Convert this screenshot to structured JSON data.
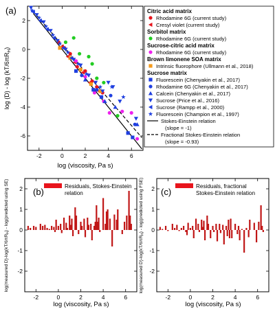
{
  "chart_data": [
    {
      "panel": "(a)",
      "type": "scatter",
      "xlabel": "log (viscosity, Pa s)",
      "ylabel": "log (D) - log (kT/6πR",
      "ylabel_sub": "H",
      "ylabel_end": ")",
      "xlim": [
        -3,
        7
      ],
      "ylim": [
        -7,
        3
      ],
      "xticks": [
        -2,
        0,
        2,
        4,
        6
      ],
      "yticks": [
        -6,
        -4,
        -2,
        0,
        2
      ],
      "grid": false,
      "legend_groups": [
        {
          "title": "Citric acid matrix",
          "entries": [
            {
              "label": "Rhodamine 6G (current study)",
              "color": "#e8141c",
              "marker": "circle"
            },
            {
              "label": "Cresyl violet (current study)",
              "color": "#e8141c",
              "marker": "triangle-left"
            }
          ]
        },
        {
          "title": "Sorbitol matrix",
          "entries": [
            {
              "label": "Rhodamine 6G (current study)",
              "color": "#22cc22",
              "marker": "circle"
            }
          ]
        },
        {
          "title": "Sucrose-citric acid matrix",
          "entries": [
            {
              "label": "Rhodamine 6G (current study)",
              "color": "#ee22ee",
              "marker": "circle"
            }
          ]
        },
        {
          "title": "Brown limonene SOA matrix",
          "entries": [
            {
              "label": "Intrinsic fluorophore (Ullmann et al., 2018)",
              "color": "#f59a1b",
              "marker": "square"
            }
          ]
        },
        {
          "title": "Sucrose matrix",
          "entries": [
            {
              "label": "Fluorescein (Chenyakin et al., 2017)",
              "color": "#1f3fe0",
              "marker": "square"
            },
            {
              "label": "Rhodamine 6G (Chenyakin et al., 2017)",
              "color": "#1f3fe0",
              "marker": "circle"
            },
            {
              "label": "Calcein (Chenyakin et al., 2017)",
              "color": "#1f3fe0",
              "marker": "triangle-up"
            },
            {
              "label": "Sucrose (Price et al., 2016)",
              "color": "#1f3fe0",
              "marker": "triangle-down"
            },
            {
              "label": "Sucrose (Rampp et al., 2000)",
              "color": "#1f3fe0",
              "marker": "triangle-left"
            },
            {
              "label": "Fluorescein (Champion et al., 1997)",
              "color": "#1f3fe0",
              "marker": "star"
            }
          ]
        }
      ],
      "lines": [
        {
          "label": "Stokes-Einstein relation",
          "note": "(slope = -1)",
          "style": "solid",
          "slope": -1,
          "intercept": 0,
          "x_range": [
            -2.5,
            6.9
          ]
        },
        {
          "label": "Fractional Stokes-Einstein relation",
          "note": "(slope = -0.93)",
          "style": "dashed",
          "slope": -0.93,
          "intercept": 0.3,
          "x_range": [
            -2.5,
            6.9
          ]
        }
      ],
      "series": [
        {
          "name": "Citric acid matrix – Rhodamine 6G (current study)",
          "color": "#e8141c",
          "marker": "circle",
          "points": [
            [
              -0.3,
              0.5
            ],
            [
              0.2,
              0.1
            ],
            [
              0.7,
              -0.3
            ],
            [
              1.3,
              -1.2
            ],
            [
              2.0,
              -1.5
            ],
            [
              2.6,
              -2.2
            ],
            [
              3.0,
              -2.6
            ],
            [
              3.5,
              -3.0
            ]
          ]
        },
        {
          "name": "Citric acid matrix – Cresyl violet (current study)",
          "color": "#e8141c",
          "marker": "triangle-left",
          "points": [
            [
              0.0,
              0.2
            ],
            [
              0.5,
              -0.5
            ],
            [
              1.1,
              -0.9
            ],
            [
              1.8,
              -1.6
            ],
            [
              2.4,
              -2.3
            ],
            [
              3.2,
              -2.9
            ]
          ]
        },
        {
          "name": "Sorbitol matrix – Rhodamine 6G (current study)",
          "color": "#22cc22",
          "marker": "circle",
          "points": [
            [
              0.3,
              0.5
            ],
            [
              1.0,
              0.8
            ],
            [
              1.5,
              -0.3
            ],
            [
              2.3,
              -0.5
            ],
            [
              2.6,
              -1.0
            ],
            [
              3.0,
              -2.0
            ],
            [
              3.6,
              -2.3
            ],
            [
              4.8,
              -4.6
            ]
          ]
        },
        {
          "name": "Sucrose-citric acid matrix – Rhodamine 6G (current study)",
          "color": "#ee22ee",
          "marker": "circle",
          "points": [
            [
              1.2,
              -0.8
            ],
            [
              2.0,
              -1.9
            ],
            [
              2.8,
              -3.0
            ],
            [
              3.6,
              -3.6
            ],
            [
              4.1,
              -4.4
            ],
            [
              5.2,
              -4.3
            ],
            [
              6.0,
              -4.4
            ],
            [
              6.5,
              -6.2
            ]
          ]
        },
        {
          "name": "Brown limonene SOA matrix – Intrinsic fluorophore (Ullmann et al., 2018)",
          "color": "#f59a1b",
          "marker": "square",
          "points": [
            [
              -0.2,
              0.1
            ],
            [
              0.7,
              -0.6
            ],
            [
              1.6,
              -1.4
            ],
            [
              2.5,
              -2.4
            ],
            [
              3.3,
              -2.9
            ]
          ]
        },
        {
          "name": "Sucrose matrix – Fluorescein (Chenyakin et al., 2017)",
          "color": "#1f3fe0",
          "marker": "square",
          "points": [
            [
              1.2,
              -1.5
            ],
            [
              2.7,
              -2.8
            ],
            [
              3.4,
              -3.3
            ],
            [
              5.7,
              -5.8
            ],
            [
              6.1,
              -6.1
            ]
          ]
        },
        {
          "name": "Sucrose matrix – Rhodamine 6G (Chenyakin et al., 2017)",
          "color": "#1f3fe0",
          "marker": "circle",
          "points": [
            [
              1.7,
              -1.8
            ],
            [
              3.0,
              -2.8
            ],
            [
              4.2,
              -3.2
            ],
            [
              6.3,
              -5.2
            ]
          ]
        },
        {
          "name": "Sucrose matrix – Calcein (Chenyakin et al., 2017)",
          "color": "#1f3fe0",
          "marker": "triangle-up",
          "points": [
            [
              2.0,
              -2.1
            ],
            [
              3.7,
              -3.6
            ],
            [
              4.6,
              -4.0
            ],
            [
              6.5,
              -5.2
            ]
          ]
        },
        {
          "name": "Sucrose matrix – Sucrose (Price et al., 2016)",
          "color": "#1f3fe0",
          "marker": "triangle-down",
          "points": [
            [
              -2.7,
              2.9
            ],
            [
              -2.2,
              2.4
            ],
            [
              -1.6,
              1.9
            ],
            [
              -1.0,
              1.3
            ],
            [
              -0.4,
              0.6
            ],
            [
              0.3,
              0.0
            ],
            [
              1.0,
              -0.7
            ],
            [
              1.6,
              -1.1
            ],
            [
              2.3,
              -1.8
            ],
            [
              2.9,
              -2.3
            ],
            [
              3.5,
              -2.9
            ],
            [
              4.0,
              -2.3
            ],
            [
              4.4,
              -2.6
            ],
            [
              5.0,
              -3.6
            ],
            [
              6.4,
              -4.8
            ]
          ]
        },
        {
          "name": "Sucrose matrix – Sucrose (Rampp et al., 2000)",
          "color": "#1f3fe0",
          "marker": "triangle-left",
          "points": [
            [
              -2.5,
              2.6
            ],
            [
              -1.9,
              2.0
            ],
            [
              -1.3,
              1.4
            ],
            [
              -0.7,
              0.8
            ],
            [
              0.1,
              0.1
            ],
            [
              0.8,
              -0.6
            ]
          ]
        },
        {
          "name": "Sucrose matrix – Fluorescein (Champion et al., 1997)",
          "color": "#1f3fe0",
          "marker": "star",
          "points": [
            [
              -2.6,
              2.7
            ],
            [
              -2.0,
              2.2
            ],
            [
              -1.4,
              1.6
            ],
            [
              -0.8,
              1.0
            ],
            [
              -0.2,
              0.4
            ],
            [
              0.5,
              -0.2
            ],
            [
              1.4,
              -1.0
            ],
            [
              2.1,
              -1.7
            ],
            [
              3.3,
              -2.6
            ],
            [
              4.3,
              -2.6
            ],
            [
              5.3,
              -3.3
            ]
          ]
        }
      ]
    },
    {
      "panel": "(b)",
      "type": "bar",
      "legend": "Residuals, Stokes-Einstein relation",
      "legend_lines": [
        "Residuals, Stokes-Einstein",
        "relation"
      ],
      "color": "#c01616",
      "xlabel": "log (viscosity, Pa s)",
      "ylabel_lines": [
        "log(measured D)-log(kT/6πR",
        "H",
        ") - log(predicted using SE)"
      ],
      "xlim": [
        -3,
        7
      ],
      "ylim": [
        -3,
        2.5
      ],
      "xticks": [
        -2,
        0,
        2,
        4,
        6
      ],
      "yticks": [
        -2,
        -1,
        0,
        1,
        2
      ],
      "x": [
        -2.7,
        -2.5,
        -2.2,
        -2.0,
        -1.6,
        -1.4,
        -1.2,
        -1.0,
        -0.8,
        -0.6,
        -0.4,
        -0.3,
        -0.2,
        0.0,
        0.2,
        0.3,
        0.5,
        0.7,
        0.8,
        1.0,
        1.1,
        1.2,
        1.3,
        1.5,
        1.6,
        1.8,
        2.0,
        2.1,
        2.3,
        2.4,
        2.6,
        2.7,
        2.9,
        3.0,
        3.2,
        3.3,
        3.4,
        3.5,
        3.6,
        3.7,
        4.0,
        4.2,
        4.3,
        4.4,
        4.6,
        4.8,
        5.0,
        5.2,
        5.3,
        5.7,
        5.9,
        6.1,
        6.3,
        6.4,
        6.5
      ],
      "values": [
        0.2,
        0.1,
        0.2,
        0.15,
        0.3,
        0.2,
        0.25,
        0.1,
        0.05,
        0.2,
        0.15,
        -0.1,
        0.5,
        0.2,
        0.3,
        -0.15,
        0.6,
        0.35,
        0.1,
        0.7,
        0.25,
        0.55,
        -0.3,
        1.1,
        0.7,
        -0.2,
        0.4,
        0.2,
        0.55,
        -0.35,
        0.6,
        0.25,
        0.3,
        -0.5,
        0.2,
        0.4,
        1.2,
        0.4,
        0.6,
        -0.1,
        1.55,
        0.3,
        0.9,
        1.0,
        0.55,
        -0.8,
        0.75,
        0.5,
        1.0,
        -0.2,
        0.4,
        0.7,
        1.9,
        0.7,
        0.3
      ]
    },
    {
      "panel": "(c)",
      "type": "bar",
      "legend": "Residuals, fractional Stokes-Einstein relation",
      "legend_lines": [
        "Residuals, fractional",
        "Stokes-Einstein relation"
      ],
      "color": "#c01616",
      "xlabel": "log (viscosity, Pa s)",
      "ylabel_lines": [
        "log(measured D)-log(kT/6πR",
        "H",
        ") - log(predicted using FSE)"
      ],
      "xlim": [
        -3,
        7
      ],
      "ylim": [
        -3,
        2.5
      ],
      "xticks": [
        -2,
        0,
        2,
        4,
        6
      ],
      "yticks": [
        -2,
        -1,
        0,
        1,
        2
      ],
      "x": [
        -2.7,
        -2.5,
        -2.2,
        -2.0,
        -1.6,
        -1.4,
        -1.2,
        -1.0,
        -0.8,
        -0.6,
        -0.4,
        -0.3,
        -0.2,
        0.0,
        0.2,
        0.3,
        0.5,
        0.7,
        0.8,
        1.0,
        1.1,
        1.2,
        1.3,
        1.5,
        1.6,
        1.8,
        2.0,
        2.1,
        2.3,
        2.4,
        2.6,
        2.7,
        2.9,
        3.0,
        3.2,
        3.3,
        3.4,
        3.5,
        3.6,
        3.7,
        4.0,
        4.2,
        4.3,
        4.4,
        4.6,
        4.8,
        5.0,
        5.2,
        5.3,
        5.7,
        5.9,
        6.1,
        6.3,
        6.4,
        6.5
      ],
      "values": [
        0.15,
        0.05,
        0.2,
        -0.05,
        0.3,
        0.1,
        0.25,
        -0.05,
        0.1,
        0.2,
        -0.1,
        -0.25,
        0.35,
        0.1,
        0.2,
        -0.4,
        0.55,
        0.3,
        -0.1,
        0.5,
        0.15,
        0.45,
        -0.5,
        0.7,
        0.3,
        -0.4,
        0.2,
        -0.1,
        0.3,
        -0.55,
        0.3,
        -0.15,
        0.25,
        -0.7,
        0.2,
        -0.3,
        0.5,
        -0.4,
        0.55,
        -0.4,
        0.3,
        -0.2,
        0.2,
        -0.5,
        0.05,
        -1.1,
        0.1,
        -0.35,
        0.5,
        0.35,
        -0.6,
        0.4,
        1.2,
        0.2,
        -0.1
      ]
    }
  ]
}
